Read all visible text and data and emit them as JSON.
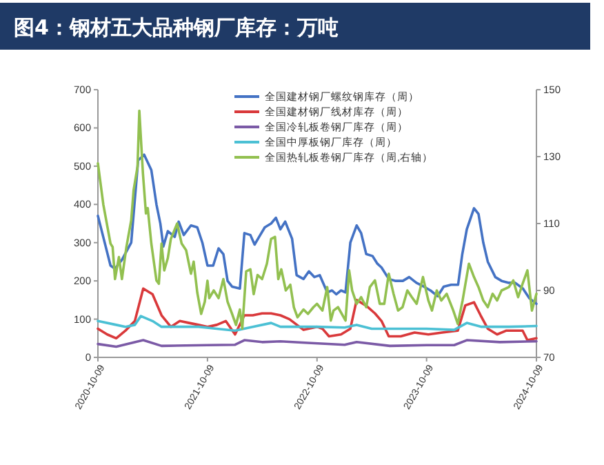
{
  "chart_data": {
    "type": "line",
    "title": "图4：钢材五大品种钢厂库存：万吨",
    "legend": "top",
    "grid": false,
    "line_style": "solid",
    "marker": "none",
    "xlim": [
      "2020-10-09",
      "2024-10-09"
    ],
    "xticks": [
      "2020-10-09",
      "2021-10-09",
      "2022-10-09",
      "2023-10-09",
      "2024-10-09"
    ],
    "ylim": [
      0,
      700
    ],
    "yticks": [
      0,
      100,
      200,
      300,
      400,
      500,
      600,
      700
    ],
    "y2lim": [
      70,
      150
    ],
    "y2ticks": [
      70,
      90,
      110,
      130,
      150
    ],
    "series": [
      {
        "name": "全国建材钢厂螺纹钢库存（周）",
        "color": "#4472c4",
        "x": [
          "2020-10-09",
          "2020-11-20",
          "2020-12-05",
          "2020-12-28",
          "2021-01-28",
          "2021-02-20",
          "2021-03-12",
          "2021-04-05",
          "2021-04-22",
          "2021-05-05",
          "2021-05-15",
          "2021-05-30",
          "2021-06-22",
          "2021-07-05",
          "2021-07-22",
          "2021-08-15",
          "2021-09-05",
          "2021-09-22",
          "2021-10-09",
          "2021-10-28",
          "2021-11-15",
          "2021-12-01",
          "2021-12-15",
          "2021-12-30",
          "2022-01-25",
          "2022-02-09",
          "2022-03-01",
          "2022-03-15",
          "2022-03-30",
          "2022-04-18",
          "2022-05-09",
          "2022-05-25",
          "2022-06-09",
          "2022-06-25",
          "2022-07-18",
          "2022-08-02",
          "2022-08-25",
          "2022-09-12",
          "2022-09-30",
          "2022-10-18",
          "2022-11-12",
          "2022-11-28",
          "2022-12-12",
          "2022-12-28",
          "2023-01-12",
          "2023-01-28",
          "2023-02-18",
          "2023-03-05",
          "2023-03-22",
          "2023-04-12",
          "2023-04-28",
          "2023-05-12",
          "2023-06-05",
          "2023-06-28",
          "2023-07-22",
          "2023-08-12",
          "2023-09-05",
          "2023-09-30",
          "2023-10-22",
          "2023-11-15",
          "2023-12-05",
          "2023-12-30",
          "2024-01-22",
          "2024-02-05",
          "2024-02-20",
          "2024-03-15",
          "2024-03-30",
          "2024-04-15",
          "2024-04-30",
          "2024-05-25",
          "2024-06-15",
          "2024-07-09",
          "2024-07-30",
          "2024-08-25",
          "2024-09-15",
          "2024-10-09"
        ],
        "values": [
          370,
          240,
          232,
          255,
          300,
          515,
          530,
          490,
          400,
          350,
          290,
          330,
          315,
          355,
          320,
          345,
          340,
          300,
          240,
          240,
          285,
          270,
          200,
          185,
          180,
          325,
          320,
          295,
          315,
          340,
          350,
          365,
          335,
          355,
          310,
          215,
          205,
          225,
          210,
          215,
          170,
          175,
          165,
          175,
          170,
          300,
          345,
          325,
          270,
          265,
          245,
          235,
          205,
          200,
          200,
          210,
          195,
          185,
          175,
          160,
          185,
          190,
          190,
          270,
          335,
          390,
          375,
          300,
          250,
          210,
          200,
          195,
          195,
          180,
          155,
          140
        ]
      },
      {
        "name": "全国建材钢厂线材库存（周）",
        "color": "#d9393b",
        "x": [
          "2020-10-09",
          "2020-11-09",
          "2020-12-09",
          "2021-01-09",
          "2021-02-09",
          "2021-03-09",
          "2021-04-09",
          "2021-05-09",
          "2021-06-09",
          "2021-07-09",
          "2021-08-09",
          "2021-09-09",
          "2021-10-09",
          "2021-11-09",
          "2021-12-09",
          "2022-01-09",
          "2022-02-09",
          "2022-03-09",
          "2022-04-09",
          "2022-05-09",
          "2022-06-09",
          "2022-07-09",
          "2022-08-25",
          "2022-10-09",
          "2022-10-27",
          "2022-11-18",
          "2022-12-28",
          "2023-01-28",
          "2023-02-18",
          "2023-03-22",
          "2023-04-20",
          "2023-05-12",
          "2023-06-05",
          "2023-07-15",
          "2023-08-30",
          "2023-10-15",
          "2023-11-30",
          "2024-01-21",
          "2024-02-15",
          "2024-03-15",
          "2024-04-06",
          "2024-04-30",
          "2024-05-31",
          "2024-07-01",
          "2024-08-24",
          "2024-09-09",
          "2024-10-09"
        ],
        "values": [
          75,
          60,
          50,
          70,
          95,
          180,
          165,
          110,
          80,
          95,
          90,
          85,
          80,
          85,
          95,
          60,
          110,
          110,
          115,
          115,
          110,
          100,
          72,
          80,
          75,
          55,
          60,
          75,
          150,
          135,
          115,
          95,
          55,
          55,
          65,
          60,
          65,
          70,
          136,
          144,
          110,
          75,
          60,
          70,
          70,
          45,
          50
        ]
      },
      {
        "name": "全国冷轧板卷钢厂库存（周）",
        "color": "#7b5aa6",
        "x": [
          "2020-10-09",
          "2020-12-09",
          "2021-03-09",
          "2021-05-09",
          "2021-10-09",
          "2022-01-09",
          "2022-02-09",
          "2022-04-09",
          "2022-06-09",
          "2022-09-09",
          "2023-01-09",
          "2023-02-18",
          "2023-06-09",
          "2023-10-09",
          "2024-01-09",
          "2024-02-20",
          "2024-06-09",
          "2024-10-09"
        ],
        "values": [
          35,
          28,
          45,
          30,
          32,
          33,
          45,
          40,
          42,
          38,
          33,
          40,
          30,
          32,
          32,
          45,
          40,
          42
        ]
      },
      {
        "name": "全国中厚板钢厂库存（周）",
        "color": "#4bc0d4",
        "x": [
          "2020-10-09",
          "2020-12-09",
          "2021-01-09",
          "2021-02-09",
          "2021-03-01",
          "2021-04-09",
          "2021-05-09",
          "2021-07-09",
          "2021-09-09",
          "2021-11-09",
          "2022-01-09",
          "2022-03-09",
          "2022-05-09",
          "2022-06-09",
          "2022-08-09",
          "2022-10-09",
          "2023-01-09",
          "2023-02-18",
          "2023-04-09",
          "2023-07-09",
          "2023-10-09",
          "2024-01-09",
          "2024-02-20",
          "2024-04-09",
          "2024-07-09",
          "2024-10-09"
        ],
        "values": [
          95,
          85,
          80,
          85,
          108,
          95,
          80,
          80,
          80,
          75,
          70,
          80,
          90,
          80,
          80,
          80,
          78,
          85,
          75,
          75,
          75,
          72,
          90,
          80,
          80,
          82
        ]
      },
      {
        "name": "全国热轧板卷钢厂库存（周,右轴）",
        "color": "#92c050",
        "axis": "y2",
        "x": [
          "2020-10-09",
          "2020-10-27",
          "2020-11-20",
          "2020-11-27",
          "2020-12-05",
          "2020-12-18",
          "2020-12-28",
          "2021-01-12",
          "2021-01-28",
          "2021-02-05",
          "2021-02-18",
          "2021-02-24",
          "2021-03-08",
          "2021-03-18",
          "2021-03-24",
          "2021-04-05",
          "2021-04-22",
          "2021-04-30",
          "2021-05-09",
          "2021-05-18",
          "2021-05-30",
          "2021-06-09",
          "2021-06-30",
          "2021-07-15",
          "2021-07-30",
          "2021-08-15",
          "2021-08-24",
          "2021-09-05",
          "2021-09-18",
          "2021-09-30",
          "2021-10-09",
          "2021-10-15",
          "2021-10-30",
          "2021-11-15",
          "2021-12-01",
          "2021-12-15",
          "2021-12-30",
          "2022-01-12",
          "2022-01-25",
          "2022-02-02",
          "2022-02-15",
          "2022-03-01",
          "2022-03-12",
          "2022-03-25",
          "2022-04-09",
          "2022-04-25",
          "2022-05-09",
          "2022-05-22",
          "2022-06-02",
          "2022-06-12",
          "2022-06-27",
          "2022-07-12",
          "2022-07-24",
          "2022-08-05",
          "2022-08-25",
          "2022-09-09",
          "2022-09-27",
          "2022-10-09",
          "2022-10-27",
          "2022-11-12",
          "2022-11-24",
          "2022-12-03",
          "2022-12-18",
          "2023-01-12",
          "2023-01-24",
          "2023-02-03",
          "2023-02-18",
          "2023-03-05",
          "2023-03-22",
          "2023-04-03",
          "2023-04-20",
          "2023-05-06",
          "2023-05-21",
          "2023-06-05",
          "2023-06-21",
          "2023-07-06",
          "2023-07-21",
          "2023-08-06",
          "2023-08-21",
          "2023-09-06",
          "2023-09-27",
          "2023-10-15",
          "2023-10-27",
          "2023-11-12",
          "2023-11-27",
          "2023-12-15",
          "2024-01-06",
          "2024-01-21",
          "2024-02-06",
          "2024-02-27",
          "2024-03-15",
          "2024-03-30",
          "2024-04-15",
          "2024-04-30",
          "2024-05-16",
          "2024-05-31",
          "2024-06-15",
          "2024-07-09",
          "2024-07-24",
          "2024-08-09",
          "2024-08-24",
          "2024-09-09",
          "2024-09-24",
          "2024-10-09"
        ],
        "values": [
          128,
          115.7,
          104,
          103,
          93.4,
          100,
          93.4,
          103,
          111,
          120,
          127,
          143.7,
          125,
          113,
          114.6,
          104,
          93,
          92,
          104,
          96,
          99.7,
          105.4,
          110,
          104,
          102,
          95,
          98.6,
          89.4,
          83,
          86.6,
          92.9,
          87.7,
          90,
          87.7,
          93.4,
          86.6,
          83,
          79.7,
          84.3,
          78.6,
          95.7,
          96.3,
          88.9,
          94.6,
          93.4,
          98,
          105.4,
          106,
          93.4,
          96.3,
          90,
          91.7,
          84.9,
          82,
          84.3,
          83,
          85,
          86,
          84,
          91,
          81,
          84,
          85,
          81,
          96,
          90,
          86,
          88,
          85,
          91,
          93,
          86,
          86,
          95,
          89,
          84,
          85,
          90,
          88,
          86,
          94,
          87,
          84,
          90,
          87,
          89,
          84,
          80,
          87,
          98,
          94,
          91,
          87,
          85,
          89,
          87,
          90,
          91,
          93,
          88,
          92,
          96,
          84,
          89
        ]
      }
    ]
  }
}
